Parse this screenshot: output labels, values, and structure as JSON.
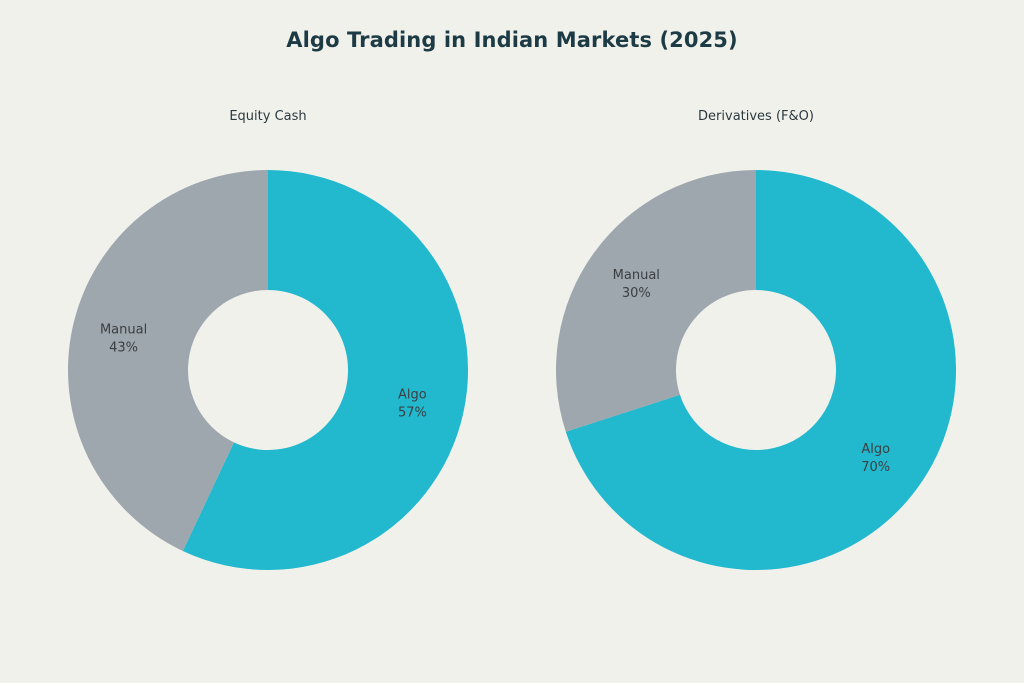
{
  "title": "Algo Trading in Indian Markets (2025)",
  "colors": {
    "background": "#f1f1ec",
    "algo": "#22b8ce",
    "manual": "#9ea7ae"
  },
  "chart_data": [
    {
      "type": "pie",
      "title": "Equity Cash",
      "hole": true,
      "slices": [
        {
          "label": "Algo",
          "value": 57,
          "display": "57%",
          "color": "#22b8ce"
        },
        {
          "label": "Manual",
          "value": 43,
          "display": "43%",
          "color": "#9ea7ae"
        }
      ]
    },
    {
      "type": "pie",
      "title": "Derivatives (F&O)",
      "hole": true,
      "slices": [
        {
          "label": "Algo",
          "value": 70,
          "display": "70%",
          "color": "#22b8ce"
        },
        {
          "label": "Manual",
          "value": 30,
          "display": "30%",
          "color": "#9ea7ae"
        }
      ]
    }
  ]
}
